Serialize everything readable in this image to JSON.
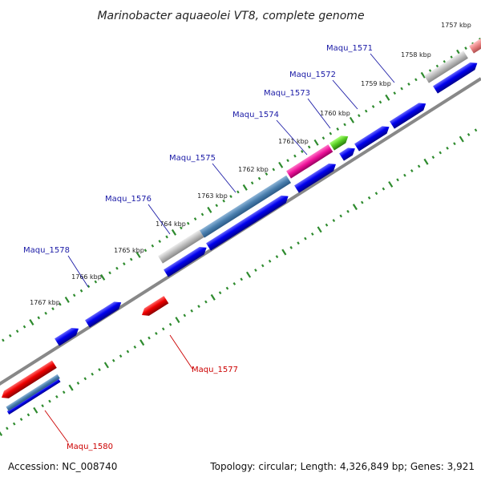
{
  "header": {
    "title": "Marinobacter aquaeolei VT8, complete genome"
  },
  "footer": {
    "accession": "Accession: NC_008740",
    "summary": "Topology: circular; Length: 4,326,849 bp; Genes: 3,921"
  },
  "colors": {
    "forward_label": "#1a1aa6",
    "reverse_label": "#cc0000",
    "tick": "#2e8b2e",
    "backbone": "#777777"
  },
  "ruler": {
    "outer_labels": [
      "1757 kbp",
      "1758 kbp",
      "1759 kbp",
      "1760 kbp",
      "1761 kbp",
      "1762 kbp",
      "1763 kbp",
      "1764 kbp",
      "1765 kbp",
      "1766 kbp",
      "1767 kbp"
    ]
  },
  "genes": [
    {
      "name": "Maqu_1571",
      "strand": "forward",
      "color": "#0000ee",
      "feature_color": "#aaaaaa"
    },
    {
      "name": "Maqu_1572",
      "strand": "forward",
      "color": "#0000ee"
    },
    {
      "name": "Maqu_1573",
      "strand": "forward",
      "color": "#0000ee",
      "feature_color": "#55cc22"
    },
    {
      "name": "Maqu_1574",
      "strand": "forward",
      "color": "#0000ee",
      "feature_color": "#ee1199"
    },
    {
      "name": "Maqu_1575",
      "strand": "forward",
      "color": "#0000ee",
      "feature_color": "#4a7fae"
    },
    {
      "name": "Maqu_1576",
      "strand": "forward",
      "color": "#0000ee",
      "feature_color": "#aaaaaa"
    },
    {
      "name": "Maqu_1578",
      "strand": "forward",
      "color": "#0000ee"
    },
    {
      "name": "Maqu_1577",
      "strand": "reverse",
      "color": "#ee0000"
    },
    {
      "name": "Maqu_1580",
      "strand": "reverse",
      "color": "#ee0000",
      "feature_color": "#4a7fae"
    }
  ]
}
